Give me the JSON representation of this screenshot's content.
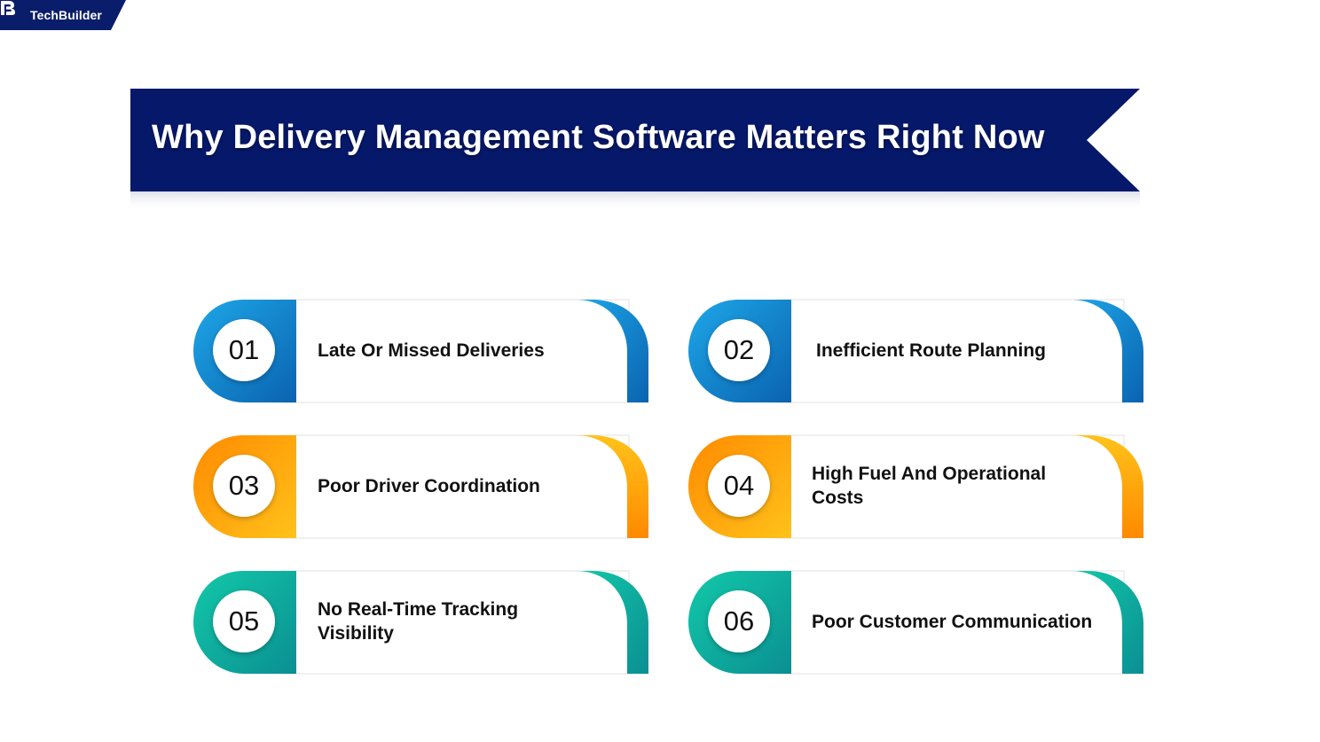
{
  "brand": {
    "name": "TechBuilder",
    "color": "#0a1d6b"
  },
  "banner": {
    "title": "Why Delivery Management Software Matters Right Now",
    "color": "#06186a"
  },
  "cards": [
    {
      "number": "01",
      "label": "Late Or Missed Deliveries",
      "theme": "blue"
    },
    {
      "number": "02",
      "label": "Inefficient Route Planning",
      "theme": "blue"
    },
    {
      "number": "03",
      "label": "Poor Driver Coordination",
      "theme": "orange"
    },
    {
      "number": "04",
      "label": "High Fuel And Operational Costs",
      "theme": "orange"
    },
    {
      "number": "05",
      "label": "No Real-Time Tracking Visibility",
      "theme": "teal"
    },
    {
      "number": "06",
      "label": "Poor Customer Communication",
      "theme": "teal"
    }
  ],
  "themes": {
    "blue": {
      "start": "#1ea7e8",
      "end": "#0a63b0"
    },
    "orange": {
      "start": "#ff8a00",
      "end": "#ffc21a"
    },
    "teal": {
      "start": "#12c9a8",
      "end": "#0b8f93"
    }
  }
}
